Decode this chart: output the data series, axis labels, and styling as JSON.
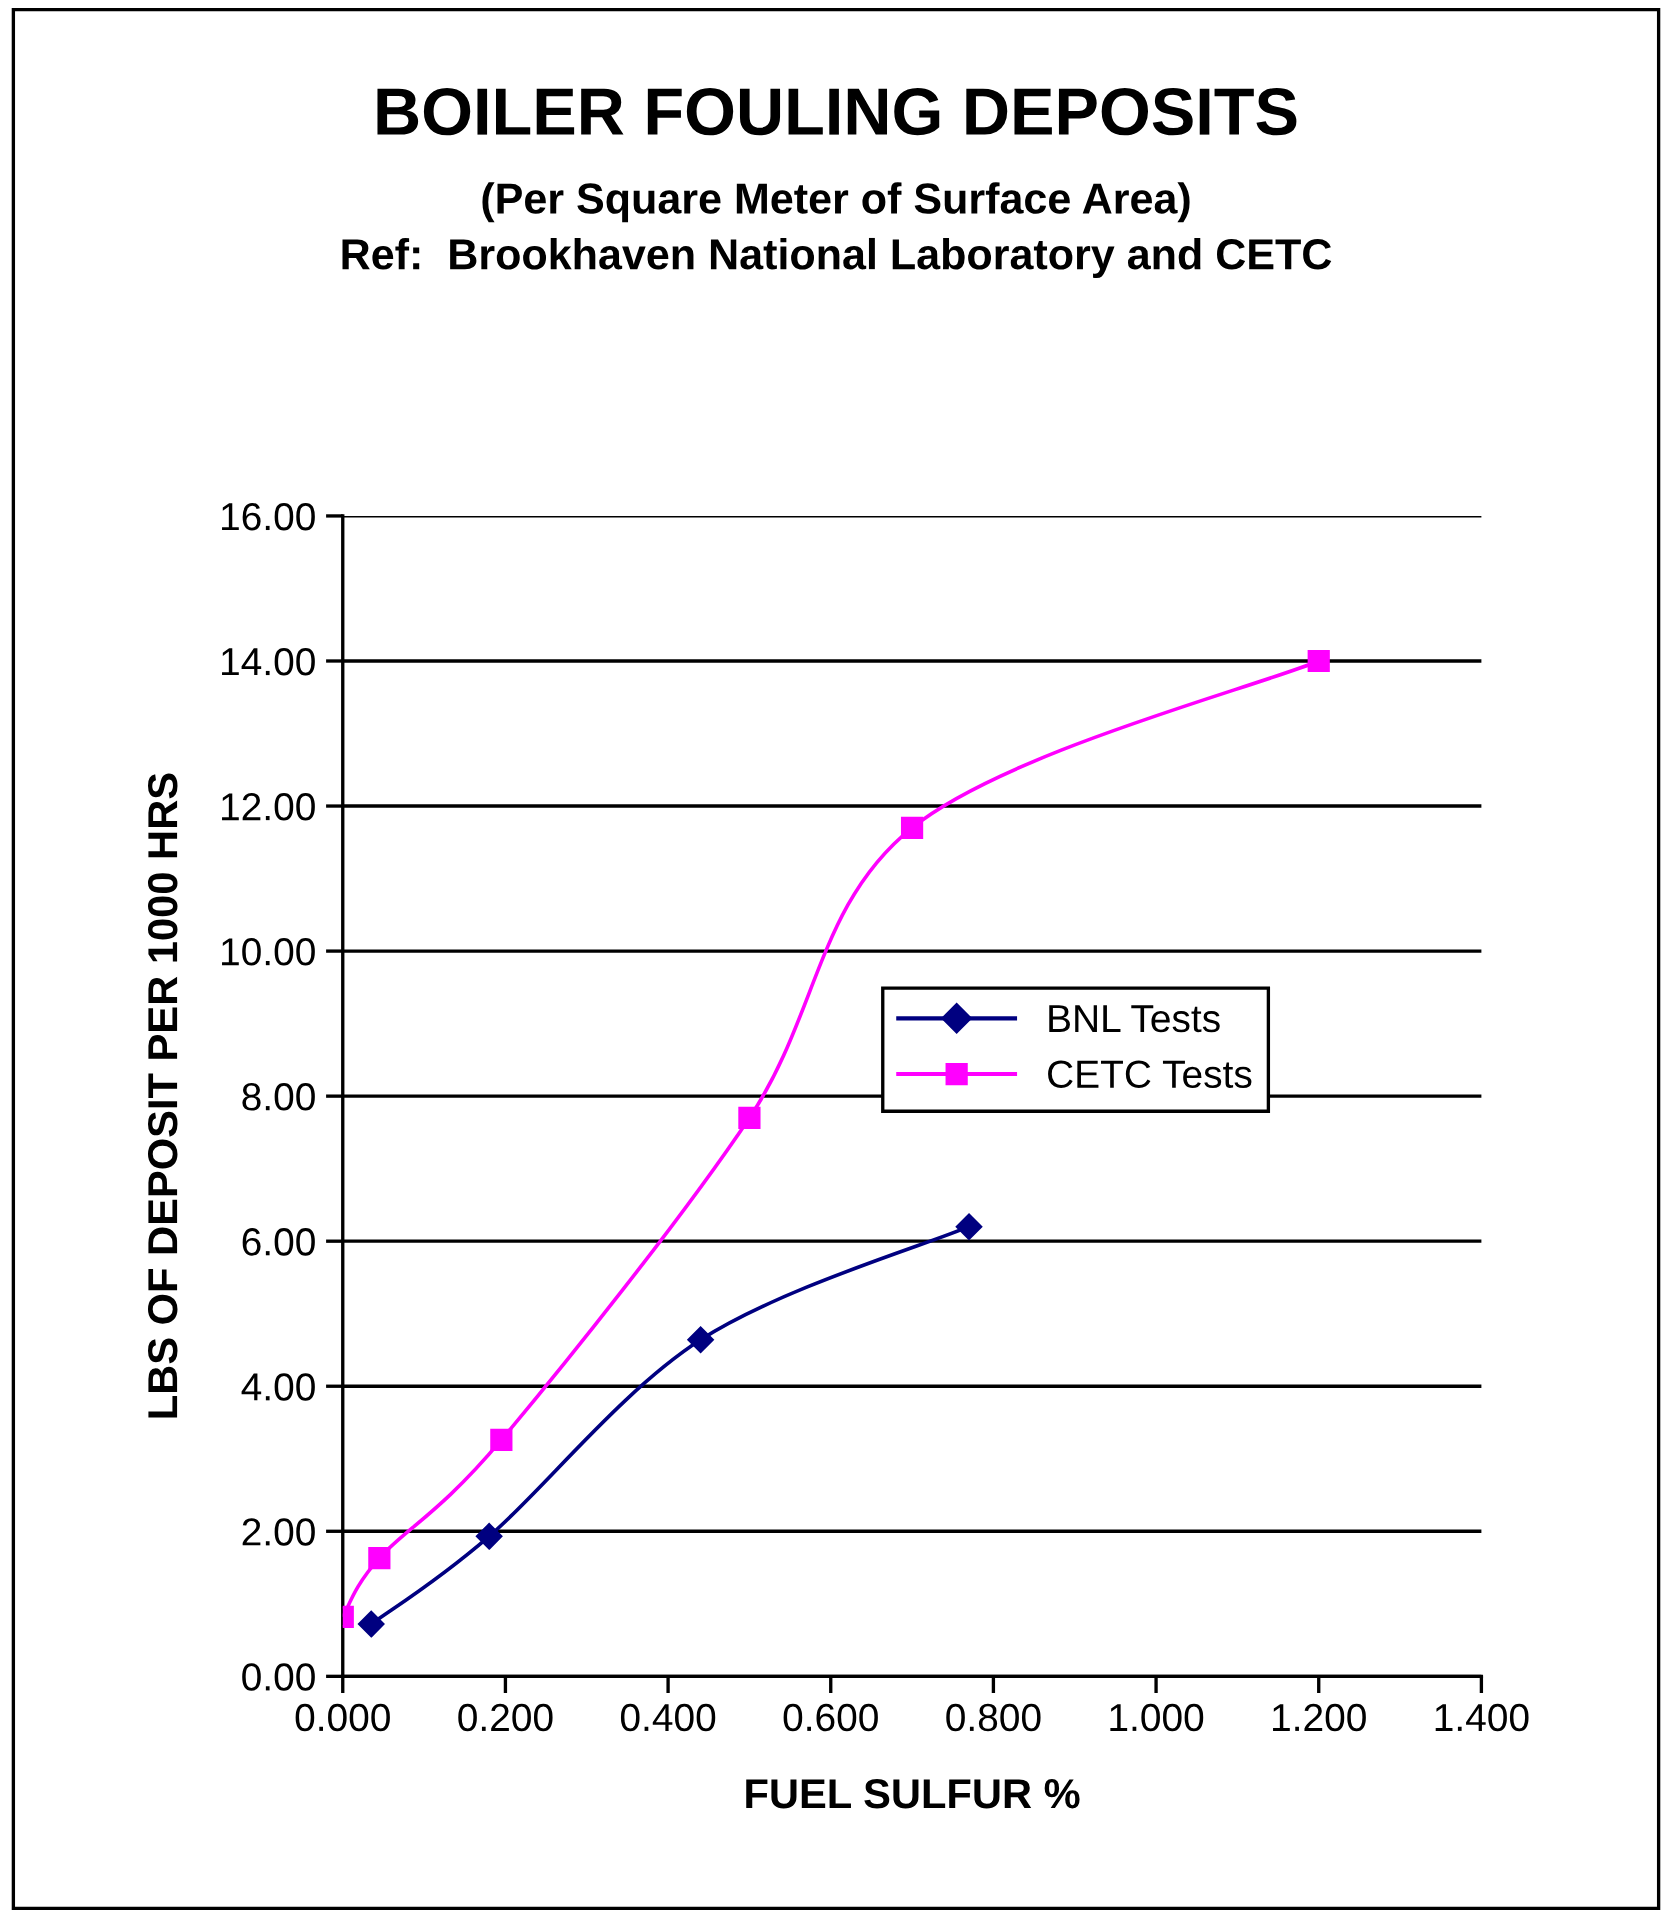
{
  "chart_data": {
    "type": "line",
    "title": "BOILER FOULING DEPOSITS",
    "subtitle": "(Per Square Meter of Surface Area)\nRef:  Brookhaven National Laboratory and CETC",
    "xlabel": "FUEL SULFUR %",
    "ylabel": "LBS OF DEPOSIT PER 1000 HRS",
    "series": [
      {
        "name": "BNL Tests",
        "color": "#000080",
        "marker": "diamond",
        "x": [
          0.035,
          0.18,
          0.44,
          0.77
        ],
        "values": [
          0.72,
          1.93,
          4.64,
          6.2
        ]
      },
      {
        "name": "CETC Tests",
        "color": "#ff00ff",
        "marker": "square",
        "x": [
          0.0,
          0.045,
          0.195,
          0.5,
          0.7,
          1.2
        ],
        "values": [
          0.82,
          1.63,
          3.26,
          7.7,
          11.7,
          14.0
        ]
      }
    ],
    "xlim": [
      0,
      1.4
    ],
    "ylim": [
      0,
      16
    ],
    "xticks": [
      {
        "value": 0,
        "label": "0.000"
      },
      {
        "value": 0.2,
        "label": "0.200"
      },
      {
        "value": 0.4,
        "label": "0.400"
      },
      {
        "value": 0.6,
        "label": "0.600"
      },
      {
        "value": 0.8,
        "label": "0.800"
      },
      {
        "value": 1.0,
        "label": "1.000"
      },
      {
        "value": 1.2,
        "label": "1.200"
      },
      {
        "value": 1.4,
        "label": "1.400"
      }
    ],
    "yticks": [
      {
        "value": 0,
        "label": "0.00"
      },
      {
        "value": 2,
        "label": "2.00"
      },
      {
        "value": 4,
        "label": "4.00"
      },
      {
        "value": 6,
        "label": "6.00"
      },
      {
        "value": 8,
        "label": "8.00"
      },
      {
        "value": 10,
        "label": "10.00"
      },
      {
        "value": 12,
        "label": "12.00"
      },
      {
        "value": 14,
        "label": "14.00"
      },
      {
        "value": 16,
        "label": "16.00"
      }
    ],
    "grid": "y",
    "legend": "right",
    "line_style": "solid"
  }
}
